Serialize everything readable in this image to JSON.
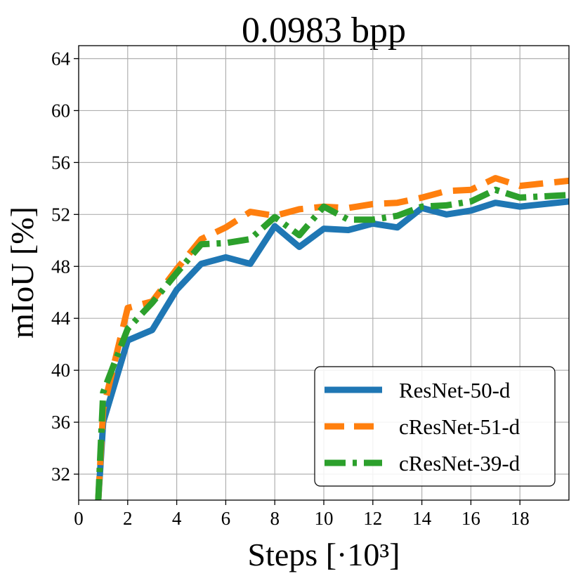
{
  "chart_data": {
    "type": "line",
    "title": "0.0983 bpp",
    "xlabel": "Steps [·10³]",
    "ylabel": "mIoU [%]",
    "xlim": [
      0,
      20
    ],
    "ylim": [
      30,
      65
    ],
    "xticks": [
      0,
      2,
      4,
      6,
      8,
      10,
      12,
      14,
      16,
      18
    ],
    "yticks": [
      32,
      36,
      40,
      44,
      48,
      52,
      56,
      60,
      64
    ],
    "xtick_labels": [
      "0",
      "2",
      "4",
      "6",
      "8",
      "10",
      "12",
      "14",
      "16",
      "18"
    ],
    "ytick_labels": [
      "32",
      "36",
      "40",
      "44",
      "48",
      "52",
      "56",
      "60",
      "64"
    ],
    "grid": true,
    "legend_location": "lower-right",
    "series": [
      {
        "name": "ResNet-50-d",
        "color": "#1f77b4",
        "dash": "solid",
        "x": [
          0.8,
          1,
          2,
          3,
          4,
          5,
          6,
          7,
          8,
          9,
          10,
          11,
          12,
          13,
          14,
          15,
          16,
          17,
          18,
          20
        ],
        "y": [
          30,
          36,
          42.3,
          43.1,
          46.2,
          48.2,
          48.7,
          48.2,
          51.1,
          49.5,
          50.9,
          50.8,
          51.3,
          51,
          52.5,
          52,
          52.3,
          52.9,
          52.6,
          53
        ]
      },
      {
        "name": "cResNet-51-d",
        "color": "#ff7f0e",
        "dash": "dashed",
        "x": [
          0.8,
          1,
          2,
          3,
          4,
          5,
          6,
          7,
          8,
          9,
          10,
          11,
          12,
          13,
          14,
          15,
          16,
          17,
          18,
          20
        ],
        "y": [
          30,
          37,
          44.8,
          45.3,
          47.8,
          50.1,
          51,
          52.2,
          51.9,
          52.4,
          52.6,
          52.5,
          52.8,
          52.9,
          53.3,
          53.8,
          53.9,
          54.8,
          54.2,
          54.6
        ]
      },
      {
        "name": "cResNet-39-d",
        "color": "#2ca02c",
        "dash": "dashdot",
        "x": [
          0.8,
          1,
          2,
          3,
          4,
          5,
          6,
          7,
          8,
          9,
          10,
          11,
          12,
          13,
          14,
          15,
          16,
          17,
          18,
          20
        ],
        "y": [
          30,
          38.3,
          43.2,
          45.2,
          47.5,
          49.7,
          49.8,
          50.1,
          51.8,
          50.4,
          52.6,
          51.6,
          51.6,
          51.9,
          52.6,
          52.7,
          53,
          53.9,
          53.3,
          53.5
        ]
      }
    ]
  }
}
